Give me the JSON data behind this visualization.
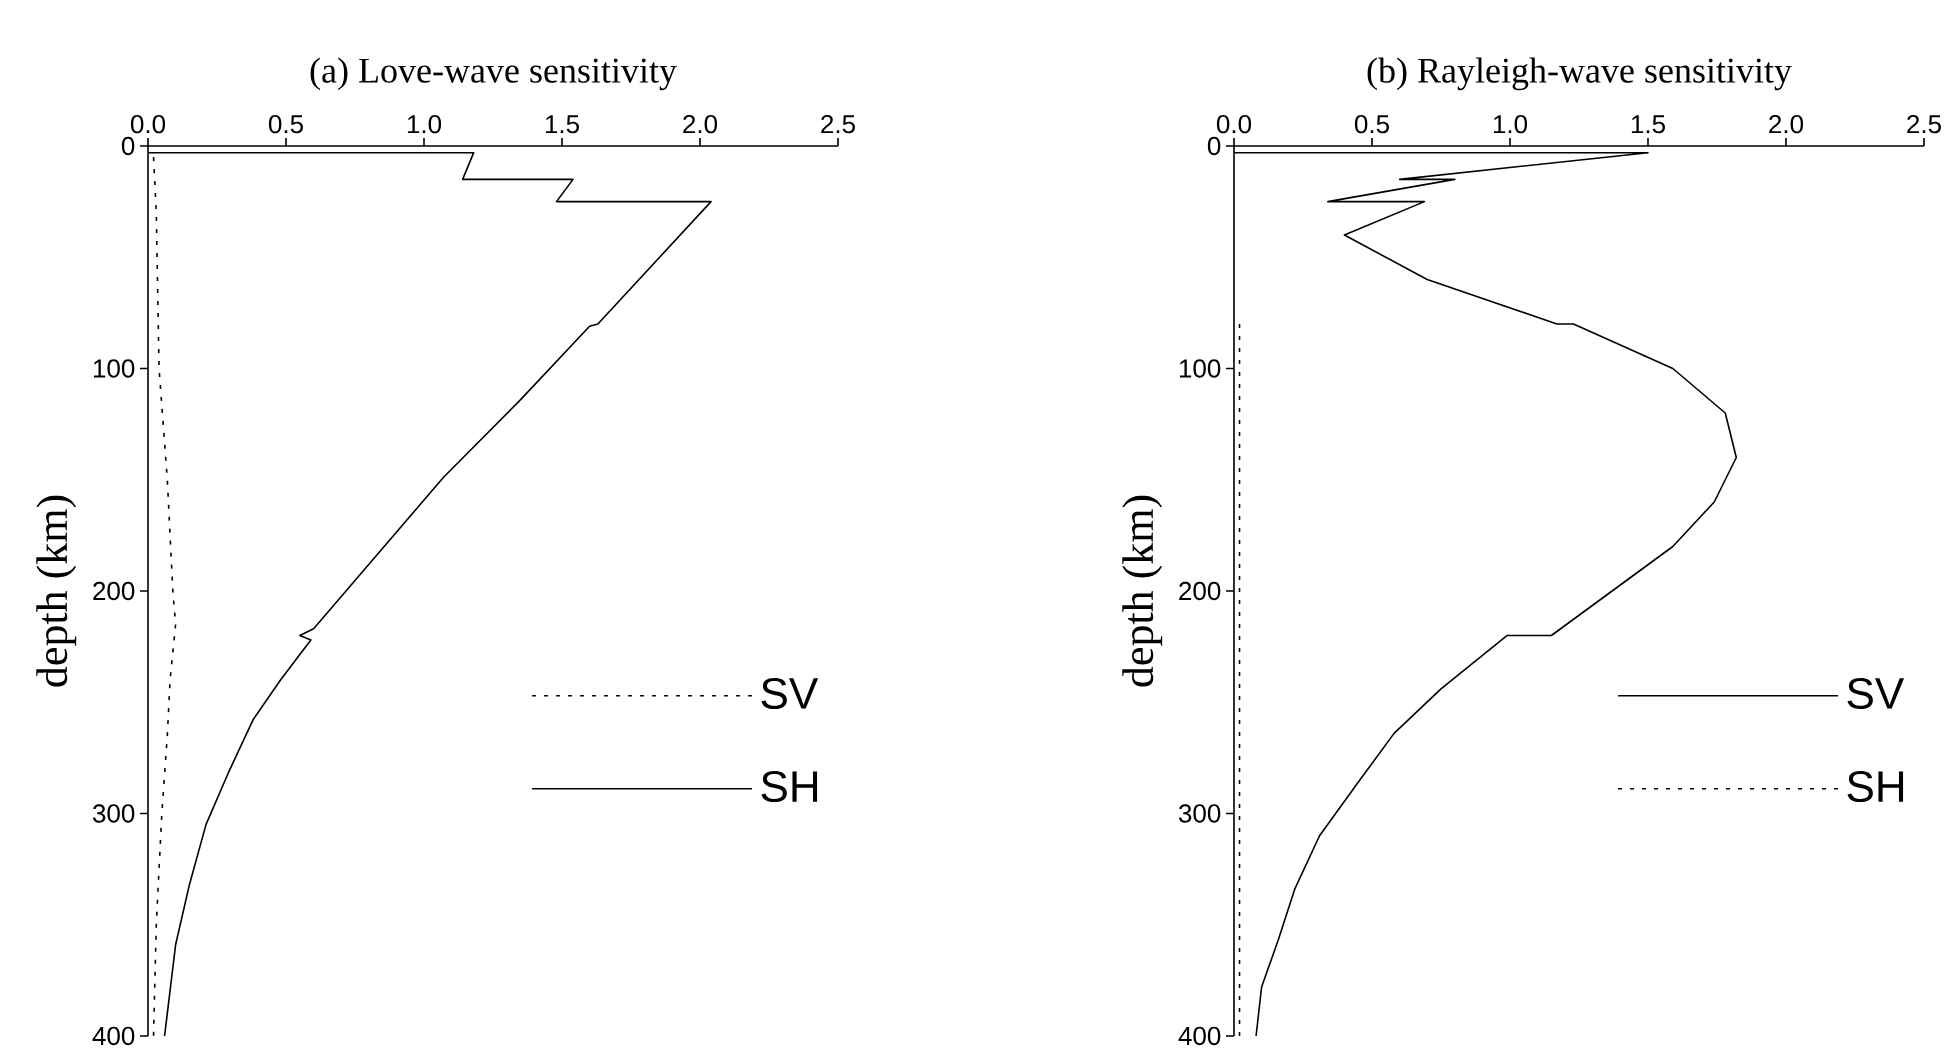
{
  "chart_data": [
    {
      "type": "line",
      "title": "(a) Love-wave sensitivity",
      "ylabel": "depth (km)",
      "xlim": [
        0,
        2.5
      ],
      "xticks": [
        {
          "value": 0,
          "label": "0.0"
        },
        {
          "value": 0.5,
          "label": "0.5"
        },
        {
          "value": 1,
          "label": "1.0"
        },
        {
          "value": 1.5,
          "label": "1.5"
        },
        {
          "value": 2,
          "label": "2.0"
        },
        {
          "value": 2.5,
          "label": "2.5"
        }
      ],
      "ylim": [
        400,
        0
      ],
      "yticks": [
        0,
        100,
        200,
        300,
        400
      ],
      "legend": "right",
      "series": [
        {
          "name": "SV",
          "color": "#000000",
          "line_style": "dotted",
          "x": [
            0.02,
            0.03,
            0.04,
            0.07,
            0.09,
            0.1,
            0.08,
            0.07,
            0.05,
            0.03,
            0.02
          ],
          "values": [
            5,
            30,
            100,
            150,
            200,
            215,
            240,
            265,
            300,
            350,
            400
          ]
        },
        {
          "name": "SH",
          "color": "#000000",
          "line_style": "solid",
          "x": [
            0,
            1.18,
            1.14,
            1.54,
            1.48,
            2.04,
            1.63,
            1.6,
            1.35,
            1.07,
            0.6,
            0.55,
            0.59,
            0.48,
            0.38,
            0.29,
            0.21,
            0.15,
            0.1,
            0.06
          ],
          "values": [
            3,
            3,
            15,
            15,
            25,
            25,
            80,
            81,
            114,
            149,
            217,
            220,
            222,
            240,
            258,
            282,
            305,
            332,
            359,
            400
          ]
        }
      ]
    },
    {
      "type": "line",
      "title": "(b) Rayleigh-wave sensitivity",
      "ylabel": "depth (km)",
      "xlim": [
        0,
        2.5
      ],
      "xticks": [
        {
          "value": 0,
          "label": "0.0"
        },
        {
          "value": 0.5,
          "label": "0.5"
        },
        {
          "value": 1,
          "label": "1.0"
        },
        {
          "value": 1.5,
          "label": "1.5"
        },
        {
          "value": 2,
          "label": "2.0"
        },
        {
          "value": 2.5,
          "label": "2.5"
        }
      ],
      "ylim": [
        400,
        0
      ],
      "yticks": [
        0,
        100,
        200,
        300,
        400
      ],
      "legend": "right",
      "series": [
        {
          "name": "SV",
          "color": "#000000",
          "line_style": "solid",
          "x": [
            0,
            1.5,
            0.6,
            0.8,
            0.34,
            0.69,
            0.4,
            0.7,
            1.17,
            1.23,
            1.59,
            1.78,
            1.82,
            1.74,
            1.59,
            1.15,
            0.99,
            0.75,
            0.58,
            0.45,
            0.31,
            0.22,
            0.16,
            0.1,
            0.08
          ],
          "values": [
            3,
            3,
            15,
            15,
            25,
            25,
            40,
            60,
            80,
            80,
            100,
            120,
            140,
            160,
            180,
            220,
            220,
            244,
            264,
            286,
            310,
            334,
            357,
            378,
            400
          ]
        },
        {
          "name": "SH",
          "color": "#000000",
          "line_style": "dotted",
          "x": [
            0.02,
            0.02
          ],
          "values": [
            80,
            400
          ]
        }
      ]
    }
  ]
}
